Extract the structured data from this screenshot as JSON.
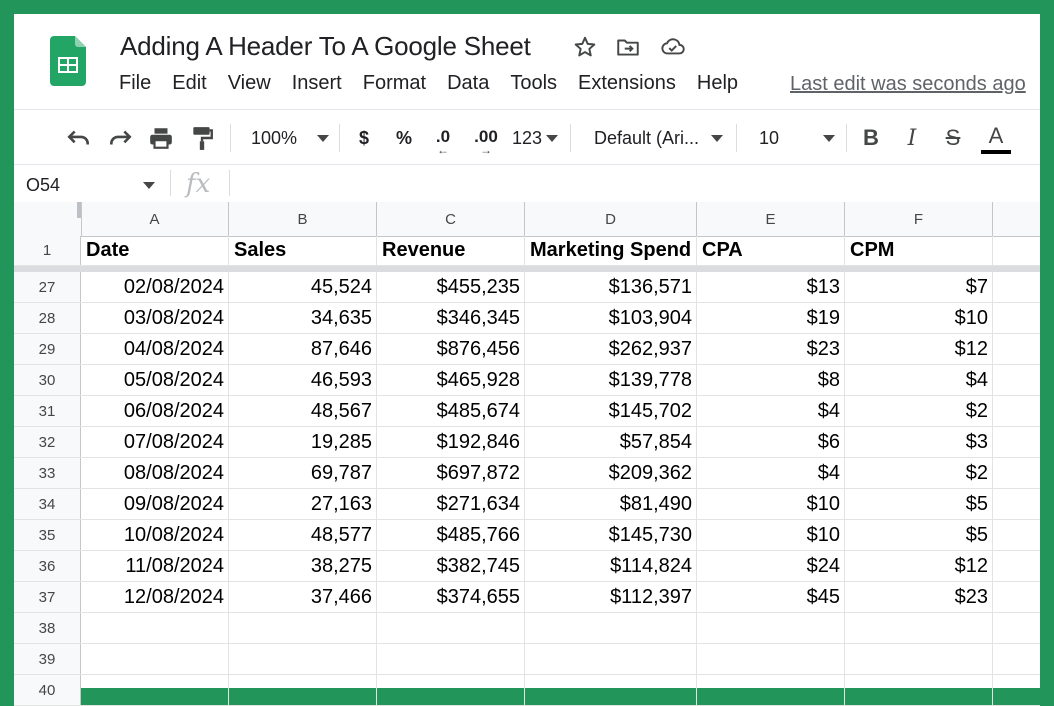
{
  "document": {
    "title": "Adding A Header To A Google Sheet",
    "last_edit": "Last edit was seconds ago"
  },
  "menu": [
    "File",
    "Edit",
    "View",
    "Insert",
    "Format",
    "Data",
    "Tools",
    "Extensions",
    "Help"
  ],
  "toolbar": {
    "zoom": "100%",
    "currency": "$",
    "percent": "%",
    "decrease_decimals": ".0",
    "increase_decimals": ".00",
    "more_formats": "123",
    "font": "Default (Ari...",
    "font_size": "10",
    "bold": "B",
    "italic": "I",
    "strikethrough": "S",
    "text_color": "A"
  },
  "formula_bar": {
    "cell_ref": "O54",
    "fx_label": "fx"
  },
  "columns": [
    "A",
    "B",
    "C",
    "D",
    "E",
    "F"
  ],
  "header_row": {
    "number": "1",
    "cells": [
      "Date",
      "Sales",
      "Revenue",
      "Marketing Spend",
      "CPA",
      "CPM"
    ]
  },
  "rows": [
    {
      "number": "27",
      "cells": [
        "02/08/2024",
        "45,524",
        "$455,235",
        "$136,571",
        "$13",
        "$7"
      ]
    },
    {
      "number": "28",
      "cells": [
        "03/08/2024",
        "34,635",
        "$346,345",
        "$103,904",
        "$19",
        "$10"
      ]
    },
    {
      "number": "29",
      "cells": [
        "04/08/2024",
        "87,646",
        "$876,456",
        "$262,937",
        "$23",
        "$12"
      ]
    },
    {
      "number": "30",
      "cells": [
        "05/08/2024",
        "46,593",
        "$465,928",
        "$139,778",
        "$8",
        "$4"
      ]
    },
    {
      "number": "31",
      "cells": [
        "06/08/2024",
        "48,567",
        "$485,674",
        "$145,702",
        "$4",
        "$2"
      ]
    },
    {
      "number": "32",
      "cells": [
        "07/08/2024",
        "19,285",
        "$192,846",
        "$57,854",
        "$6",
        "$3"
      ]
    },
    {
      "number": "33",
      "cells": [
        "08/08/2024",
        "69,787",
        "$697,872",
        "$209,362",
        "$4",
        "$2"
      ]
    },
    {
      "number": "34",
      "cells": [
        "09/08/2024",
        "27,163",
        "$271,634",
        "$81,490",
        "$10",
        "$5"
      ]
    },
    {
      "number": "35",
      "cells": [
        "10/08/2024",
        "48,577",
        "$485,766",
        "$145,730",
        "$10",
        "$5"
      ]
    },
    {
      "number": "36",
      "cells": [
        "11/08/2024",
        "38,275",
        "$382,745",
        "$114,824",
        "$24",
        "$12"
      ]
    },
    {
      "number": "37",
      "cells": [
        "12/08/2024",
        "37,466",
        "$374,655",
        "$112,397",
        "$45",
        "$23"
      ]
    },
    {
      "number": "38",
      "cells": [
        "",
        "",
        "",
        "",
        "",
        ""
      ]
    },
    {
      "number": "39",
      "cells": [
        "",
        "",
        "",
        "",
        "",
        ""
      ]
    },
    {
      "number": "40",
      "cells": [
        "",
        "",
        "",
        "",
        "",
        ""
      ]
    }
  ],
  "colors": {
    "frame": "#22955a",
    "sheets_green": "#23a566",
    "header_bg": "#f8f9fa"
  },
  "icons": [
    "sheets-logo-icon",
    "star-icon",
    "move-folder-icon",
    "cloud-saved-icon",
    "undo-icon",
    "redo-icon",
    "print-icon",
    "paint-format-icon"
  ]
}
